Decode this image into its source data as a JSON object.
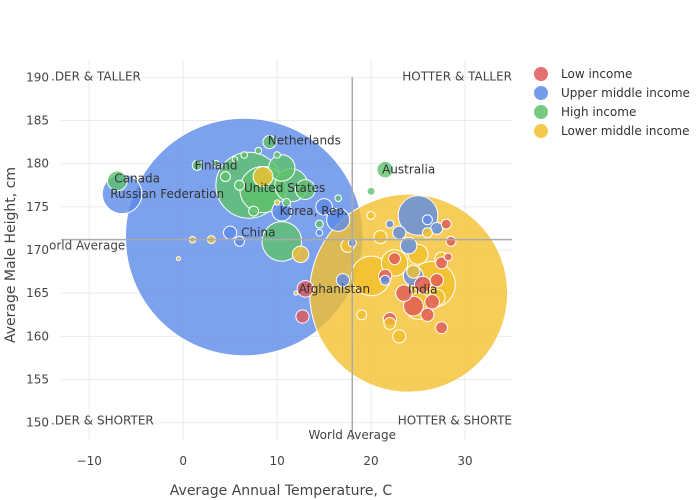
{
  "chart_data": {
    "type": "scatter",
    "title": "",
    "xlabel": "Average Annual Temperature, C",
    "ylabel": "Average Male Height, cm",
    "xlim": [
      -13,
      35
    ],
    "ylim": [
      148,
      192
    ],
    "xticks": [
      -10,
      0,
      10,
      20,
      30
    ],
    "yticks": [
      150,
      155,
      160,
      165,
      170,
      175,
      180,
      185,
      190
    ],
    "grid": true,
    "legend": "top-right",
    "reference_lines": {
      "x": 18,
      "y": 171.2
    },
    "reference_labels": [
      "World Average",
      "World Average"
    ],
    "quadrant_labels": [
      "SHORTER & TALLER",
      "HOTTER & TALLER",
      "SHORTER & SHORTER",
      "HOTTER & SHORTER"
    ],
    "quadrant_labels_visible": [
      ".DER & TALLER",
      "HOTTER & TALLER",
      ".DER & SHORTER",
      "HOTTER & SHORTE"
    ],
    "series": [
      {
        "name": "Low income",
        "color": "#e05759",
        "points": [
          {
            "x": 13.0,
            "y": 165.5,
            "s": 0.25
          },
          {
            "x": 12.7,
            "y": 162.3,
            "s": 0.2
          },
          {
            "x": 28.0,
            "y": 173.0,
            "s": 0.15
          },
          {
            "x": 28.5,
            "y": 171.0,
            "s": 0.15
          },
          {
            "x": 28.2,
            "y": 169.2,
            "s": 0.12
          },
          {
            "x": 27.5,
            "y": 168.5,
            "s": 0.18
          },
          {
            "x": 27.0,
            "y": 166.5,
            "s": 0.2
          },
          {
            "x": 26.5,
            "y": 164.0,
            "s": 0.22
          },
          {
            "x": 26.0,
            "y": 162.5,
            "s": 0.2
          },
          {
            "x": 25.5,
            "y": 166.0,
            "s": 0.25
          },
          {
            "x": 24.5,
            "y": 163.5,
            "s": 0.3
          },
          {
            "x": 23.5,
            "y": 165.0,
            "s": 0.25
          },
          {
            "x": 22.0,
            "y": 162.0,
            "s": 0.2
          },
          {
            "x": 21.5,
            "y": 167.0,
            "s": 0.2
          },
          {
            "x": 22.5,
            "y": 169.0,
            "s": 0.18
          },
          {
            "x": 27.5,
            "y": 161.0,
            "s": 0.18
          }
        ]
      },
      {
        "name": "Upper middle income",
        "color": "#5d8be8",
        "points": [
          {
            "x": 6.5,
            "y": 171.5,
            "s": 3.6
          },
          {
            "x": -6.5,
            "y": 176.5,
            "s": 0.6
          },
          {
            "x": 10.5,
            "y": 174.5,
            "s": 0.3
          },
          {
            "x": 5.0,
            "y": 172.0,
            "s": 0.2
          },
          {
            "x": 6.0,
            "y": 171.0,
            "s": 0.15
          },
          {
            "x": 15.0,
            "y": 175.0,
            "s": 0.25
          },
          {
            "x": 16.5,
            "y": 173.5,
            "s": 0.35
          },
          {
            "x": 17.0,
            "y": 166.5,
            "s": 0.2
          },
          {
            "x": 18.0,
            "y": 170.8,
            "s": 0.12
          },
          {
            "x": 25.0,
            "y": 174.0,
            "s": 0.6
          },
          {
            "x": 23.0,
            "y": 172.0,
            "s": 0.2
          },
          {
            "x": 24.0,
            "y": 170.5,
            "s": 0.25
          },
          {
            "x": 26.0,
            "y": 173.5,
            "s": 0.15
          },
          {
            "x": 27.0,
            "y": 172.5,
            "s": 0.18
          },
          {
            "x": 22.0,
            "y": 173.0,
            "s": 0.12
          },
          {
            "x": 24.5,
            "y": 167.0,
            "s": 0.3
          },
          {
            "x": 14.5,
            "y": 172.0,
            "s": 0.1
          },
          {
            "x": 21.5,
            "y": 166.5,
            "s": 0.15
          }
        ]
      },
      {
        "name": "High income",
        "color": "#5ec26b",
        "points": [
          {
            "x": 7.0,
            "y": 177.5,
            "s": 1.0
          },
          {
            "x": 8.5,
            "y": 177.0,
            "s": 0.7
          },
          {
            "x": 10.5,
            "y": 179.5,
            "s": 0.4
          },
          {
            "x": 11.5,
            "y": 177.5,
            "s": 0.5
          },
          {
            "x": 10.5,
            "y": 171.0,
            "s": 0.6
          },
          {
            "x": 9.2,
            "y": 182.5,
            "s": 0.2
          },
          {
            "x": 1.5,
            "y": 179.8,
            "s": 0.15
          },
          {
            "x": -7.0,
            "y": 178.0,
            "s": 0.3
          },
          {
            "x": 21.5,
            "y": 179.3,
            "s": 0.25
          },
          {
            "x": 13.0,
            "y": 177.0,
            "s": 0.3
          },
          {
            "x": 4.5,
            "y": 178.5,
            "s": 0.15
          },
          {
            "x": 6.0,
            "y": 177.5,
            "s": 0.15
          },
          {
            "x": 7.5,
            "y": 174.5,
            "s": 0.15
          },
          {
            "x": 20.0,
            "y": 176.8,
            "s": 0.12
          },
          {
            "x": 14.5,
            "y": 173.0,
            "s": 0.12
          },
          {
            "x": 8.0,
            "y": 181.5,
            "s": 0.1
          },
          {
            "x": 6.5,
            "y": 181.0,
            "s": 0.1
          },
          {
            "x": 10.0,
            "y": 181.0,
            "s": 0.1
          },
          {
            "x": 3.5,
            "y": 180.0,
            "s": 0.1
          },
          {
            "x": 11.0,
            "y": 175.5,
            "s": 0.12
          },
          {
            "x": 5.5,
            "y": 180.5,
            "s": 0.08
          },
          {
            "x": 16.5,
            "y": 176.0,
            "s": 0.1
          }
        ]
      },
      {
        "name": "Lower middle income",
        "color": "#f2c12e",
        "points": [
          {
            "x": 24.0,
            "y": 165.0,
            "s": 3.0
          },
          {
            "x": 26.5,
            "y": 166.0,
            "s": 0.7
          },
          {
            "x": 20.0,
            "y": 167.0,
            "s": 0.6
          },
          {
            "x": 25.0,
            "y": 163.5,
            "s": 0.4
          },
          {
            "x": 22.5,
            "y": 168.5,
            "s": 0.4
          },
          {
            "x": 8.5,
            "y": 178.5,
            "s": 0.3
          },
          {
            "x": 12.5,
            "y": 169.5,
            "s": 0.25
          },
          {
            "x": 17.5,
            "y": 170.5,
            "s": 0.2
          },
          {
            "x": 23.0,
            "y": 160.0,
            "s": 0.2
          },
          {
            "x": 25.0,
            "y": 169.5,
            "s": 0.3
          },
          {
            "x": 27.5,
            "y": 169.0,
            "s": 0.2
          },
          {
            "x": 26.0,
            "y": 172.0,
            "s": 0.15
          },
          {
            "x": 21.0,
            "y": 171.5,
            "s": 0.2
          },
          {
            "x": 22.0,
            "y": 161.5,
            "s": 0.18
          },
          {
            "x": 20.0,
            "y": 174.0,
            "s": 0.12
          },
          {
            "x": 1.0,
            "y": 171.2,
            "s": 0.1
          },
          {
            "x": 3.0,
            "y": 171.2,
            "s": 0.12
          },
          {
            "x": -0.5,
            "y": 169.0,
            "s": 0.06
          },
          {
            "x": 19.0,
            "y": 162.5,
            "s": 0.15
          },
          {
            "x": 24.5,
            "y": 167.5,
            "s": 0.2
          },
          {
            "x": 27.0,
            "y": 164.5,
            "s": 0.25
          },
          {
            "x": 12.0,
            "y": 165.0,
            "s": 0.05
          },
          {
            "x": 10.0,
            "y": 175.5,
            "s": 0.08
          }
        ]
      }
    ],
    "annotations": [
      {
        "text": "Netherlands",
        "x": 12.9,
        "y": 182.7
      },
      {
        "text": "Finland",
        "x": 3.5,
        "y": 179.8
      },
      {
        "text": "Canada",
        "x": -4.9,
        "y": 178.3
      },
      {
        "text": "Russian Federation",
        "x": -1.7,
        "y": 176.5
      },
      {
        "text": "United States",
        "x": 10.8,
        "y": 177.2
      },
      {
        "text": "Australia",
        "x": 24.0,
        "y": 179.3
      },
      {
        "text": "Korea, Rep.",
        "x": 13.9,
        "y": 174.5
      },
      {
        "text": "China",
        "x": 8.0,
        "y": 172.0
      },
      {
        "text": "Afghanistan",
        "x": 16.1,
        "y": 165.5
      },
      {
        "text": "India",
        "x": 25.5,
        "y": 165.4
      }
    ]
  }
}
